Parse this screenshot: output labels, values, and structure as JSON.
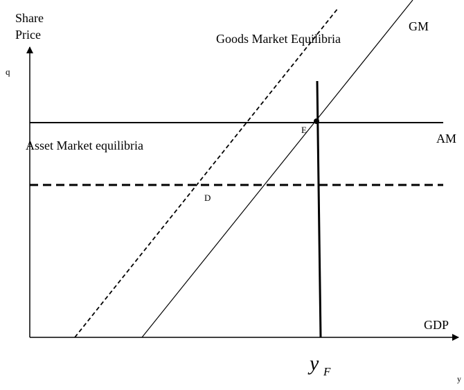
{
  "axes": {
    "y_label_line1": "Share",
    "y_label_line2": "Price",
    "y_symbol": "q",
    "x_label": "GDP",
    "x_symbol": "y"
  },
  "curves": {
    "goods_market_shifted": "Goods Market Equilibria",
    "goods_market": "GM",
    "asset_market": "AM",
    "asset_market_text": "Asset Market equilibria"
  },
  "points": {
    "e": "E",
    "d": "D"
  },
  "full_employment": {
    "symbol": "y",
    "subscript": "F"
  }
}
